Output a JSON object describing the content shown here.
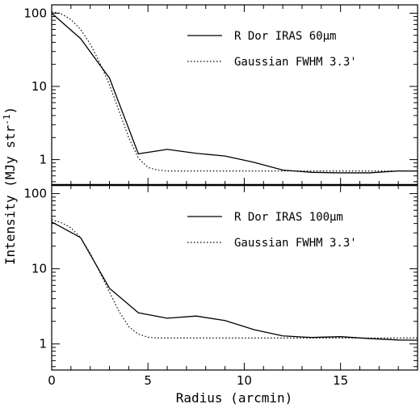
{
  "chart_data": [
    {
      "type": "line",
      "panel": "top",
      "xlim": [
        0,
        19
      ],
      "ylim": [
        0.45,
        130
      ],
      "yscale": "log",
      "xticks": [
        0,
        5,
        10,
        15
      ],
      "yticks": [
        1,
        10,
        100
      ],
      "ytick_labels": [
        "1",
        "10",
        "100"
      ],
      "legend_position": "top-right",
      "series": [
        {
          "name": "R Dor IRAS 60μm",
          "style": "solid",
          "x": [
            0,
            1.5,
            3.0,
            4.5,
            6.0,
            7.5,
            9.0,
            10.5,
            12.0,
            13.5,
            15.0,
            16.5,
            18.0,
            19.0
          ],
          "y": [
            100,
            45,
            13,
            1.2,
            1.38,
            1.22,
            1.12,
            0.92,
            0.72,
            0.67,
            0.66,
            0.66,
            0.7,
            0.7
          ]
        },
        {
          "name": "Gaussian FWHM 3.3'",
          "style": "dotted",
          "x": [
            0,
            0.5,
            1.0,
            1.5,
            2.0,
            2.5,
            3.0,
            3.5,
            4.0,
            4.5,
            5.0,
            5.5,
            6.0,
            7.0,
            9.0,
            12.0,
            15.0,
            19.0
          ],
          "y": [
            105,
            98,
            82,
            60,
            38,
            21,
            10.5,
            4.6,
            2.0,
            1.05,
            0.78,
            0.72,
            0.7,
            0.7,
            0.7,
            0.7,
            0.7,
            0.7
          ]
        }
      ]
    },
    {
      "type": "line",
      "panel": "bottom",
      "xlim": [
        0,
        19
      ],
      "ylim": [
        0.45,
        130
      ],
      "yscale": "log",
      "xticks": [
        0,
        5,
        10,
        15
      ],
      "xtick_labels": [
        "0",
        "5",
        "10",
        "15"
      ],
      "yticks": [
        1,
        10,
        100
      ],
      "ytick_labels": [
        "1",
        "10",
        "100"
      ],
      "xlabel": "Radius (arcmin)",
      "legend_position": "top-right",
      "series": [
        {
          "name": "R Dor IRAS 100μm",
          "style": "solid",
          "x": [
            0,
            1.5,
            3.0,
            4.5,
            6.0,
            7.5,
            9.0,
            10.5,
            12.0,
            13.5,
            15.0,
            16.5,
            18.0,
            19.0
          ],
          "y": [
            42,
            26,
            5.5,
            2.6,
            2.2,
            2.35,
            2.05,
            1.55,
            1.28,
            1.22,
            1.25,
            1.18,
            1.13,
            1.12
          ]
        },
        {
          "name": "Gaussian FWHM 3.3'",
          "style": "dotted",
          "x": [
            0,
            0.5,
            1.0,
            1.5,
            2.0,
            2.5,
            3.0,
            3.5,
            4.0,
            4.5,
            5.0,
            5.5,
            6.0,
            7.0,
            9.0,
            12.0,
            15.0,
            19.0
          ],
          "y": [
            45,
            41,
            35,
            26,
            16,
            9.0,
            4.9,
            2.7,
            1.7,
            1.35,
            1.23,
            1.2,
            1.2,
            1.2,
            1.2,
            1.2,
            1.2,
            1.2
          ]
        }
      ]
    }
  ],
  "shared": {
    "ylabel_main": "Intensity (MJy str",
    "ylabel_sup": "-1",
    "ylabel_close": ")"
  }
}
